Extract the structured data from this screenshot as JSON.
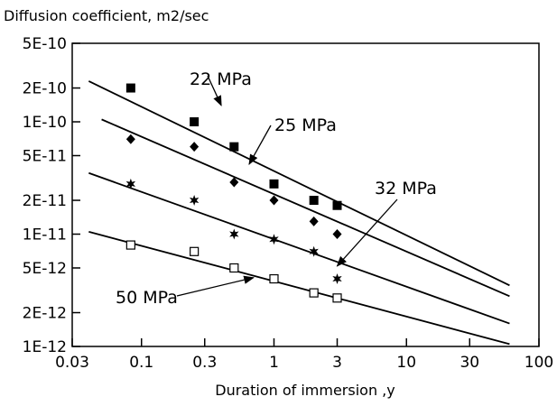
{
  "chart_data": {
    "type": "scatter",
    "title": "",
    "ylabel": "Diffusion coefficient, m2/sec",
    "xlabel": "Duration of immersion ,y",
    "x_scale": "log",
    "y_scale": "log",
    "xlim": [
      0.03,
      100
    ],
    "ylim": [
      1e-12,
      5e-10
    ],
    "grid": false,
    "legend": "none",
    "x_ticks": [
      {
        "value": 0.03,
        "label": "0.03"
      },
      {
        "value": 0.1,
        "label": "0.1"
      },
      {
        "value": 0.3,
        "label": "0.3"
      },
      {
        "value": 1,
        "label": "1"
      },
      {
        "value": 3,
        "label": "3"
      },
      {
        "value": 10,
        "label": "10"
      },
      {
        "value": 30,
        "label": "30"
      },
      {
        "value": 100,
        "label": "100"
      }
    ],
    "y_ticks": [
      {
        "value": 5e-10,
        "label": "5E-10"
      },
      {
        "value": 2e-10,
        "label": "2E-10"
      },
      {
        "value": 1e-10,
        "label": "1E-10"
      },
      {
        "value": 5e-11,
        "label": "5E-11"
      },
      {
        "value": 2e-11,
        "label": "2E-11"
      },
      {
        "value": 1e-11,
        "label": "1E-11"
      },
      {
        "value": 5e-12,
        "label": "5E-12"
      },
      {
        "value": 2e-12,
        "label": "2E-12"
      },
      {
        "value": 1e-12,
        "label": "1E-12"
      }
    ],
    "series": [
      {
        "name": "22 MPa",
        "marker": "filled-square",
        "points": [
          [
            0.083,
            2e-10
          ],
          [
            0.25,
            1e-10
          ],
          [
            0.5,
            6e-11
          ],
          [
            1,
            2.8e-11
          ],
          [
            2,
            2e-11
          ],
          [
            3,
            1.8e-11
          ]
        ],
        "fit_line": [
          [
            0.04,
            2.3e-10
          ],
          [
            60,
            3.5e-12
          ]
        ]
      },
      {
        "name": "25 MPa",
        "marker": "filled-diamond",
        "points": [
          [
            0.083,
            7e-11
          ],
          [
            0.25,
            6e-11
          ],
          [
            0.5,
            2.9e-11
          ],
          [
            1,
            2e-11
          ],
          [
            2,
            1.3e-11
          ],
          [
            3,
            1e-11
          ]
        ],
        "fit_line": [
          [
            0.05,
            1.05e-10
          ],
          [
            60,
            2.8e-12
          ]
        ]
      },
      {
        "name": "32 MPa",
        "marker": "filled-star",
        "points": [
          [
            0.083,
            2.8e-11
          ],
          [
            0.25,
            2e-11
          ],
          [
            0.5,
            1e-11
          ],
          [
            1,
            9e-12
          ],
          [
            2,
            7e-12
          ],
          [
            3,
            4e-12
          ]
        ],
        "fit_line": [
          [
            0.04,
            3.5e-11
          ],
          [
            60,
            1.6e-12
          ]
        ]
      },
      {
        "name": "50 MPa",
        "marker": "open-square",
        "points": [
          [
            0.083,
            8e-12
          ],
          [
            0.25,
            7e-12
          ],
          [
            0.5,
            5e-12
          ],
          [
            1,
            4e-12
          ],
          [
            2,
            3e-12
          ],
          [
            3,
            2.7e-12
          ]
        ],
        "fit_line": [
          [
            0.04,
            1.05e-11
          ],
          [
            60,
            1.05e-12
          ]
        ]
      }
    ],
    "annotations": [
      {
        "series": 0,
        "text": "22 MPa",
        "arrow_to": [
          0.4,
          1.4e-10
        ]
      },
      {
        "series": 1,
        "text": "25 MPa",
        "arrow_to": [
          0.65,
          4.2e-11
        ]
      },
      {
        "series": 2,
        "text": "32 MPa",
        "arrow_to": [
          3.0,
          5.2e-12
        ]
      },
      {
        "series": 3,
        "text": "50 MPa",
        "arrow_to": [
          0.7,
          4.1e-12
        ]
      }
    ]
  }
}
